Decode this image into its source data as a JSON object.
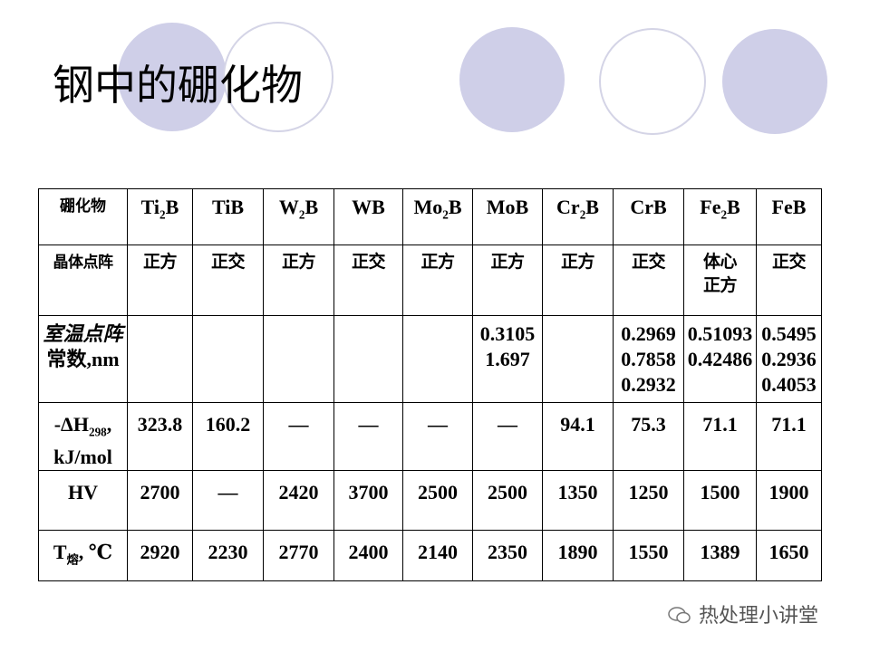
{
  "title": "钢中的硼化物",
  "table": {
    "rows": [
      [
        "硼化物",
        [
          [
            "Ti",
            {
              "sub": "2"
            },
            "B"
          ]
        ],
        "TiB",
        [
          [
            "W",
            {
              "sub": "2"
            },
            "B"
          ]
        ],
        "WB",
        [
          [
            "Mo",
            {
              "sub": "2"
            },
            "B"
          ]
        ],
        "MoB",
        [
          [
            "Cr",
            {
              "sub": "2"
            },
            "B"
          ]
        ],
        "CrB",
        [
          [
            "Fe",
            {
              "sub": "2"
            },
            "B"
          ]
        ],
        "FeB"
      ],
      [
        "晶体点阵",
        "正方",
        "正交",
        "正方",
        "正交",
        "正方",
        "正方",
        "正方",
        "正交",
        [
          "体心",
          "正方"
        ],
        "正交"
      ],
      [
        [
          "室温点阵",
          "常数,nm"
        ],
        null,
        null,
        null,
        null,
        null,
        [
          "0.3105",
          "1.697"
        ],
        null,
        [
          "0.2969",
          "0.7858",
          "0.2932"
        ],
        [
          "0.51093",
          "0.42486"
        ],
        [
          "0.5495",
          "0.2936",
          "0.4053"
        ]
      ],
      [
        [
          [
            "-ΔH",
            {
              "sub": "298"
            },
            ","
          ],
          "kJ/mol"
        ],
        "323.8",
        "160.2",
        "—",
        "—",
        "—",
        "—",
        "94.1",
        "75.3",
        "71.1",
        "71.1"
      ],
      [
        "HV",
        "2700",
        "—",
        "2420",
        "3700",
        "2500",
        "2500",
        "1350",
        "1250",
        "1500",
        "1900"
      ],
      [
        [
          [
            "T",
            {
              "sub": "熔"
            },
            ", ℃"
          ]
        ],
        "2920",
        "2230",
        "2770",
        "2400",
        "2140",
        "2350",
        "1890",
        "1550",
        "1389",
        "1650"
      ]
    ]
  },
  "watermark": "热处理小讲堂"
}
